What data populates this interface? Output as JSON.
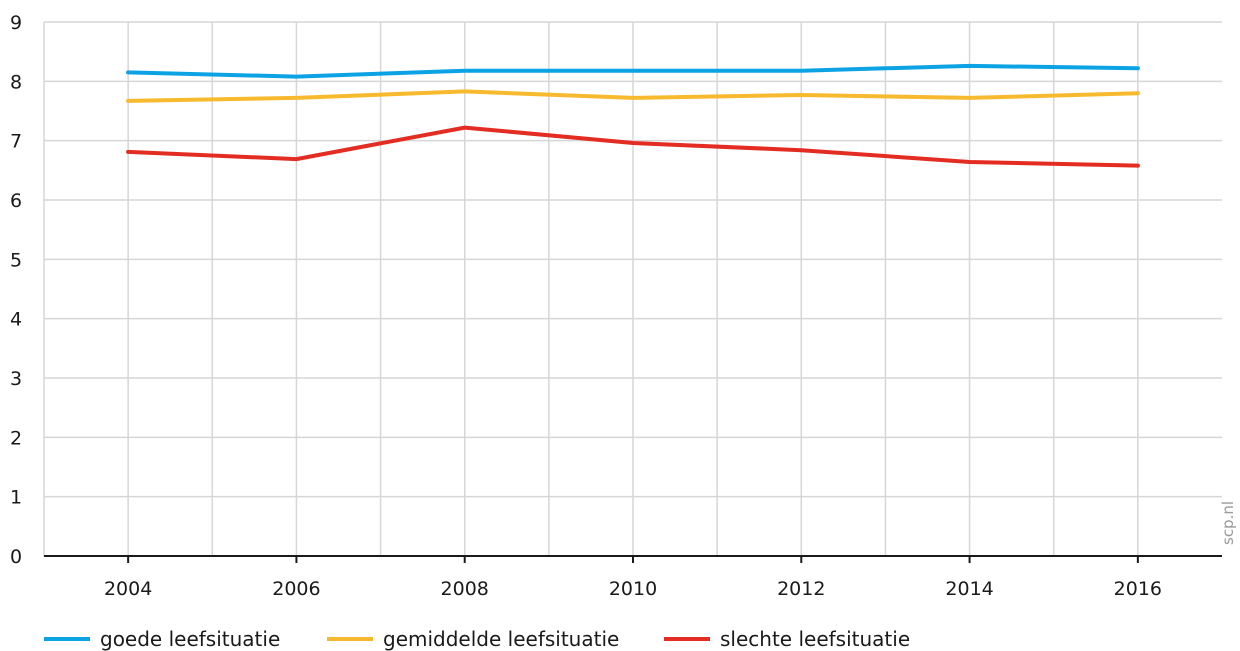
{
  "chart_data": {
    "type": "line",
    "x": [
      2004,
      2006,
      2008,
      2010,
      2012,
      2014,
      2016
    ],
    "x_ticks": [
      "2004",
      "2006",
      "2008",
      "2010",
      "2012",
      "2014",
      "2016"
    ],
    "y_ticks": [
      "0",
      "1",
      "2",
      "3",
      "4",
      "5",
      "6",
      "7",
      "8",
      "9"
    ],
    "xlim": [
      2003,
      2017
    ],
    "ylim": [
      0,
      9
    ],
    "grid": true,
    "legend_position": "bottom",
    "series": [
      {
        "name": "goede leefsituatie",
        "color": "#0ca3e4",
        "values": [
          8.15,
          8.08,
          8.18,
          8.18,
          8.18,
          8.26,
          8.22
        ]
      },
      {
        "name": "gemiddelde leefsituatie",
        "color": "#f7b92e",
        "values": [
          7.67,
          7.72,
          7.83,
          7.72,
          7.77,
          7.72,
          7.8
        ]
      },
      {
        "name": "slechte leefsituatie",
        "color": "#e32c22",
        "values": [
          6.81,
          6.69,
          7.22,
          6.96,
          6.84,
          6.64,
          6.58
        ]
      }
    ],
    "watermark": "scp.nl"
  }
}
